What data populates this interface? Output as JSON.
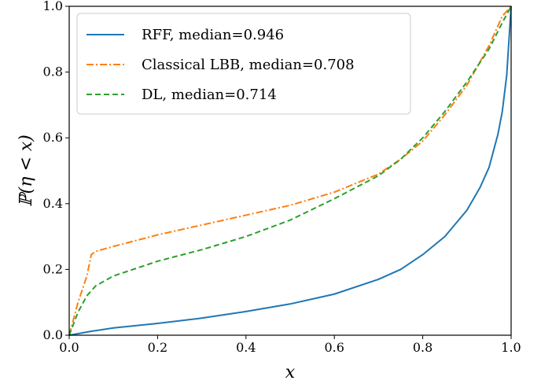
{
  "chart_data": {
    "type": "line",
    "title": "",
    "xlabel": "x",
    "ylabel": "ℙ(η < x)",
    "xlim": [
      0.0,
      1.0
    ],
    "ylim": [
      0.0,
      1.0
    ],
    "xticks": [
      "0.0",
      "0.2",
      "0.4",
      "0.6",
      "0.8",
      "1.0"
    ],
    "yticks": [
      "0.0",
      "0.2",
      "0.4",
      "0.6",
      "0.8",
      "1.0"
    ],
    "grid": false,
    "legend_position": "top-left",
    "series": [
      {
        "name": "RFF, median=0.946",
        "color": "#1f77b4",
        "style": "solid",
        "x": [
          0.0,
          0.05,
          0.1,
          0.2,
          0.3,
          0.4,
          0.5,
          0.6,
          0.7,
          0.75,
          0.8,
          0.85,
          0.9,
          0.93,
          0.95,
          0.97,
          0.98,
          0.99,
          1.0
        ],
        "y": [
          0.0,
          0.012,
          0.022,
          0.036,
          0.052,
          0.072,
          0.095,
          0.125,
          0.17,
          0.2,
          0.245,
          0.3,
          0.38,
          0.45,
          0.51,
          0.61,
          0.68,
          0.79,
          1.0
        ]
      },
      {
        "name": "Classical LBB, median=0.708",
        "color": "#ff7f0e",
        "style": "dashdot",
        "x": [
          0.0,
          0.02,
          0.04,
          0.05,
          0.06,
          0.1,
          0.2,
          0.3,
          0.4,
          0.5,
          0.6,
          0.7,
          0.75,
          0.8,
          0.85,
          0.9,
          0.95,
          0.98,
          1.0
        ],
        "y": [
          0.0,
          0.1,
          0.18,
          0.245,
          0.255,
          0.27,
          0.305,
          0.335,
          0.365,
          0.395,
          0.435,
          0.49,
          0.535,
          0.59,
          0.67,
          0.76,
          0.88,
          0.97,
          1.0
        ]
      },
      {
        "name": "DL, median=0.714",
        "color": "#2ca02c",
        "style": "dashed",
        "x": [
          0.0,
          0.02,
          0.04,
          0.06,
          0.1,
          0.2,
          0.3,
          0.4,
          0.5,
          0.6,
          0.7,
          0.75,
          0.8,
          0.85,
          0.9,
          0.95,
          0.98,
          1.0
        ],
        "y": [
          0.0,
          0.07,
          0.12,
          0.15,
          0.18,
          0.225,
          0.26,
          0.3,
          0.35,
          0.415,
          0.485,
          0.535,
          0.6,
          0.68,
          0.77,
          0.87,
          0.95,
          1.0
        ]
      }
    ]
  }
}
